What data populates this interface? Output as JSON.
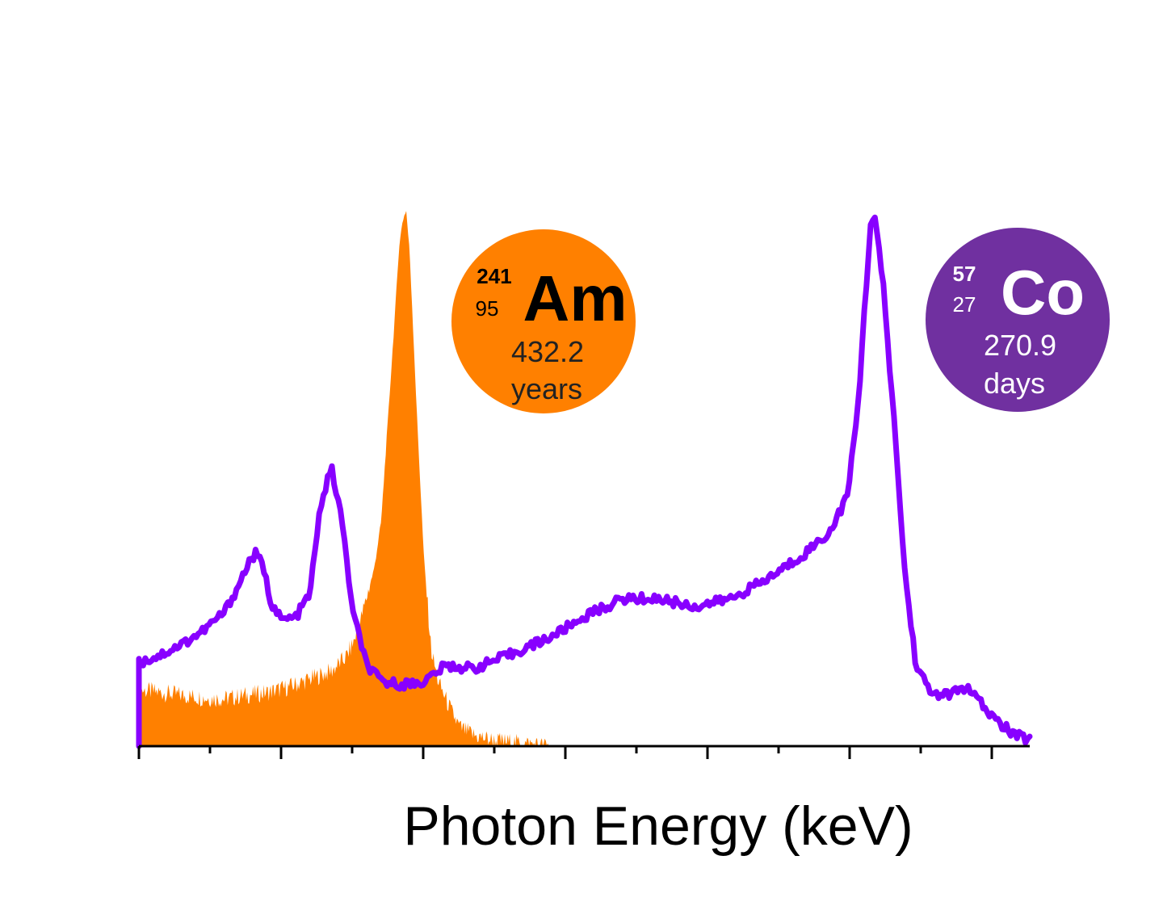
{
  "chart_data": {
    "type": "area",
    "xlabel": "Photon Energy (keV)",
    "ylabel": "",
    "x_ticks": {
      "major": 7,
      "minor": 6
    },
    "x_range": [
      0,
      12.5
    ],
    "y_range": [
      0,
      1
    ],
    "grid": false,
    "series": [
      {
        "key": "am241",
        "style": "filled-area",
        "color": "#ff8000",
        "points": [
          [
            0.0,
            0.105
          ],
          [
            0.3,
            0.1
          ],
          [
            0.6,
            0.095
          ],
          [
            0.9,
            0.09
          ],
          [
            1.2,
            0.088
          ],
          [
            1.5,
            0.095
          ],
          [
            1.8,
            0.1
          ],
          [
            2.1,
            0.11
          ],
          [
            2.4,
            0.125
          ],
          [
            2.7,
            0.14
          ],
          [
            2.9,
            0.165
          ],
          [
            3.0,
            0.19
          ],
          [
            3.1,
            0.23
          ],
          [
            3.2,
            0.28
          ],
          [
            3.3,
            0.33
          ],
          [
            3.4,
            0.42
          ],
          [
            3.5,
            0.62
          ],
          [
            3.6,
            0.82
          ],
          [
            3.65,
            0.93
          ],
          [
            3.7,
            0.98
          ],
          [
            3.75,
            1.0
          ],
          [
            3.8,
            0.92
          ],
          [
            3.9,
            0.62
          ],
          [
            4.0,
            0.35
          ],
          [
            4.1,
            0.18
          ],
          [
            4.2,
            0.12
          ],
          [
            4.3,
            0.09
          ],
          [
            4.4,
            0.06
          ],
          [
            4.5,
            0.035
          ],
          [
            4.7,
            0.02
          ],
          [
            5.0,
            0.01
          ],
          [
            5.5,
            0.004
          ],
          [
            5.75,
            0.0
          ]
        ]
      },
      {
        "key": "co57",
        "style": "line",
        "color": "#8800ff",
        "points": [
          [
            0.0,
            0.155
          ],
          [
            0.3,
            0.17
          ],
          [
            0.6,
            0.19
          ],
          [
            0.9,
            0.215
          ],
          [
            1.2,
            0.25
          ],
          [
            1.4,
            0.3
          ],
          [
            1.55,
            0.345
          ],
          [
            1.65,
            0.36
          ],
          [
            1.75,
            0.33
          ],
          [
            1.85,
            0.27
          ],
          [
            2.0,
            0.235
          ],
          [
            2.2,
            0.24
          ],
          [
            2.4,
            0.285
          ],
          [
            2.55,
            0.45
          ],
          [
            2.7,
            0.52
          ],
          [
            2.85,
            0.42
          ],
          [
            3.0,
            0.25
          ],
          [
            3.2,
            0.15
          ],
          [
            3.4,
            0.12
          ],
          [
            3.7,
            0.115
          ],
          [
            4.0,
            0.12
          ],
          [
            4.3,
            0.15
          ],
          [
            4.7,
            0.145
          ],
          [
            5.2,
            0.17
          ],
          [
            5.8,
            0.205
          ],
          [
            6.3,
            0.245
          ],
          [
            6.8,
            0.275
          ],
          [
            7.3,
            0.275
          ],
          [
            7.8,
            0.26
          ],
          [
            8.3,
            0.275
          ],
          [
            8.8,
            0.31
          ],
          [
            9.3,
            0.355
          ],
          [
            9.7,
            0.4
          ],
          [
            9.95,
            0.47
          ],
          [
            10.1,
            0.65
          ],
          [
            10.2,
            0.85
          ],
          [
            10.27,
            0.98
          ],
          [
            10.33,
            0.985
          ],
          [
            10.45,
            0.85
          ],
          [
            10.6,
            0.6
          ],
          [
            10.75,
            0.32
          ],
          [
            10.9,
            0.155
          ],
          [
            11.1,
            0.1
          ],
          [
            11.35,
            0.095
          ],
          [
            11.6,
            0.11
          ],
          [
            11.75,
            0.09
          ],
          [
            11.9,
            0.065
          ],
          [
            12.1,
            0.04
          ],
          [
            12.3,
            0.02
          ],
          [
            12.5,
            0.012
          ]
        ]
      }
    ]
  },
  "badges": [
    {
      "key": "am",
      "color": "#ff8000",
      "symbol": "Am",
      "mass_number": "241",
      "atomic_number": "95",
      "half_life_value": "432.2",
      "half_life_unit": "years",
      "text_color": "#000000",
      "sub_text_color": "#222222"
    },
    {
      "key": "co",
      "color": "#7030a0",
      "symbol": "Co",
      "mass_number": "57",
      "atomic_number": "27",
      "half_life_value": "270.9",
      "half_life_unit": "days",
      "text_color": "#ffffff",
      "sub_text_color": "#ffffff"
    }
  ]
}
